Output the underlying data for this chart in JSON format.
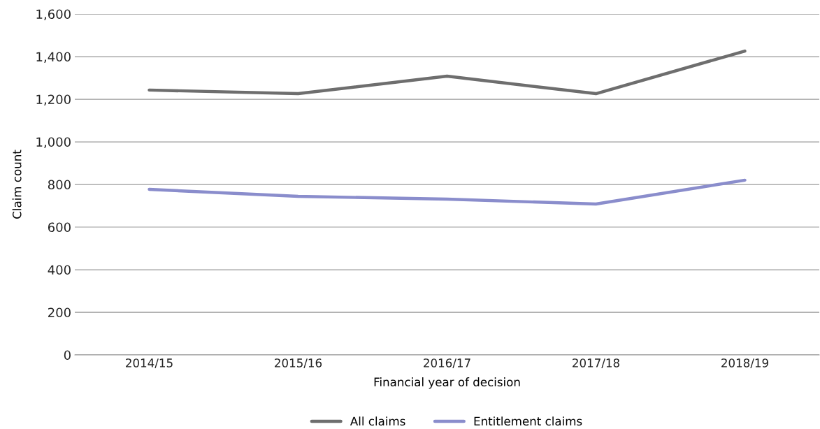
{
  "chart_data": {
    "type": "line",
    "xlabel": "Financial year of decision",
    "ylabel": "Claim count",
    "categories": [
      "2014/15",
      "2015/16",
      "2016/17",
      "2017/18",
      "2018/19"
    ],
    "series": [
      {
        "name": "All claims",
        "color": "#6e6e6e",
        "values": [
          1243,
          1226,
          1308,
          1226,
          1426
        ]
      },
      {
        "name": "Entitlement claims",
        "color": "#8a8dcc",
        "values": [
          777,
          744,
          731,
          708,
          820
        ]
      }
    ],
    "ylim": [
      0,
      1600
    ],
    "yticks": [
      {
        "value": 0,
        "label": "0"
      },
      {
        "value": 200,
        "label": "200"
      },
      {
        "value": 400,
        "label": "400"
      },
      {
        "value": 600,
        "label": "600"
      },
      {
        "value": 800,
        "label": "800"
      },
      {
        "value": 1000,
        "label": "1,000"
      },
      {
        "value": 1200,
        "label": "1,200"
      },
      {
        "value": 1400,
        "label": "1,400"
      },
      {
        "value": 1600,
        "label": "1,600"
      }
    ],
    "grid": "y",
    "legend": "bottom",
    "marker": "none",
    "line_style": "solid"
  }
}
